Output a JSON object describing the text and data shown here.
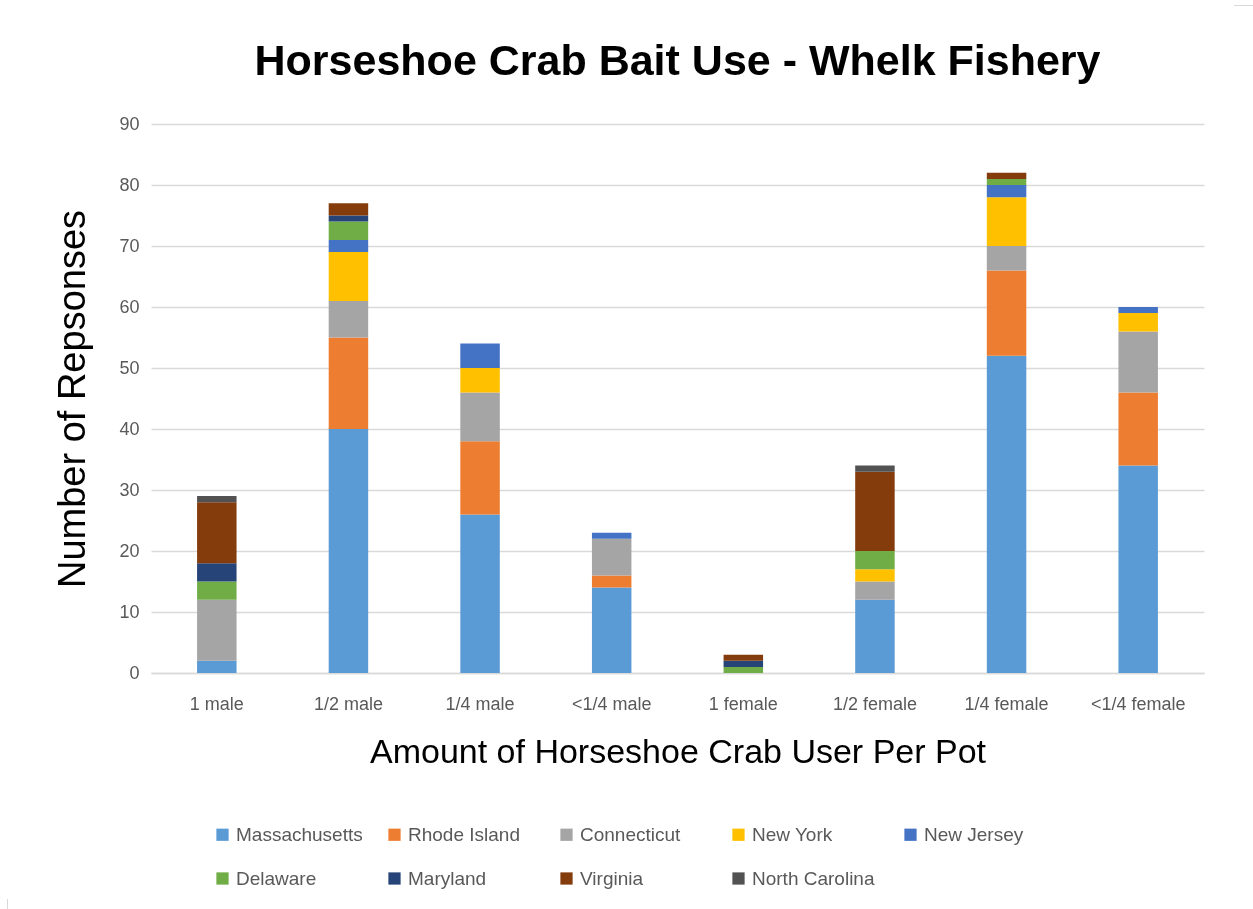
{
  "chart_data": {
    "type": "bar",
    "title": "Horseshoe Crab Bait Use - Whelk Fishery",
    "xlabel": "Amount of Horseshoe Crab User Per Pot",
    "ylabel": "Number of Repsonses",
    "categories": [
      "1 male",
      "1/2 male",
      "1/4 male",
      "<1/4 male",
      "1 female",
      "1/2 female",
      "1/4 female",
      "<1/4 female"
    ],
    "series": [
      {
        "name": "Massachusetts",
        "color": "#5b9bd5",
        "values": [
          2,
          40,
          26,
          14,
          0,
          12,
          52,
          34
        ]
      },
      {
        "name": "Rhode Island",
        "color": "#ed7d31",
        "values": [
          0,
          15,
          12,
          2,
          0,
          0,
          14,
          12
        ]
      },
      {
        "name": "Connecticut",
        "color": "#a5a5a5",
        "values": [
          10,
          6,
          8,
          6,
          0,
          3,
          4,
          10
        ]
      },
      {
        "name": "New York",
        "color": "#ffc000",
        "values": [
          0,
          8,
          4,
          0,
          0,
          2,
          8,
          3
        ]
      },
      {
        "name": "New Jersey",
        "color": "#4472c4",
        "values": [
          0,
          2,
          4,
          1,
          0,
          0,
          2,
          1
        ]
      },
      {
        "name": "Delaware",
        "color": "#70ad47",
        "values": [
          3,
          3,
          0,
          0,
          1,
          3,
          1,
          0
        ]
      },
      {
        "name": "Maryland",
        "color": "#264478",
        "values": [
          3,
          1,
          0,
          0,
          1,
          0,
          0,
          0
        ]
      },
      {
        "name": "Virginia",
        "color": "#843c0c",
        "values": [
          10,
          2,
          0,
          0,
          1,
          13,
          1,
          0
        ]
      },
      {
        "name": "North Carolina",
        "color": "#525252",
        "values": [
          1,
          0,
          0,
          0,
          0,
          1,
          0,
          0
        ]
      }
    ],
    "stacked": true,
    "ylim": [
      0,
      90
    ],
    "yticks": [
      0,
      10,
      20,
      30,
      40,
      50,
      60,
      70,
      80,
      90
    ],
    "grid": "y",
    "legend": "bottom"
  }
}
